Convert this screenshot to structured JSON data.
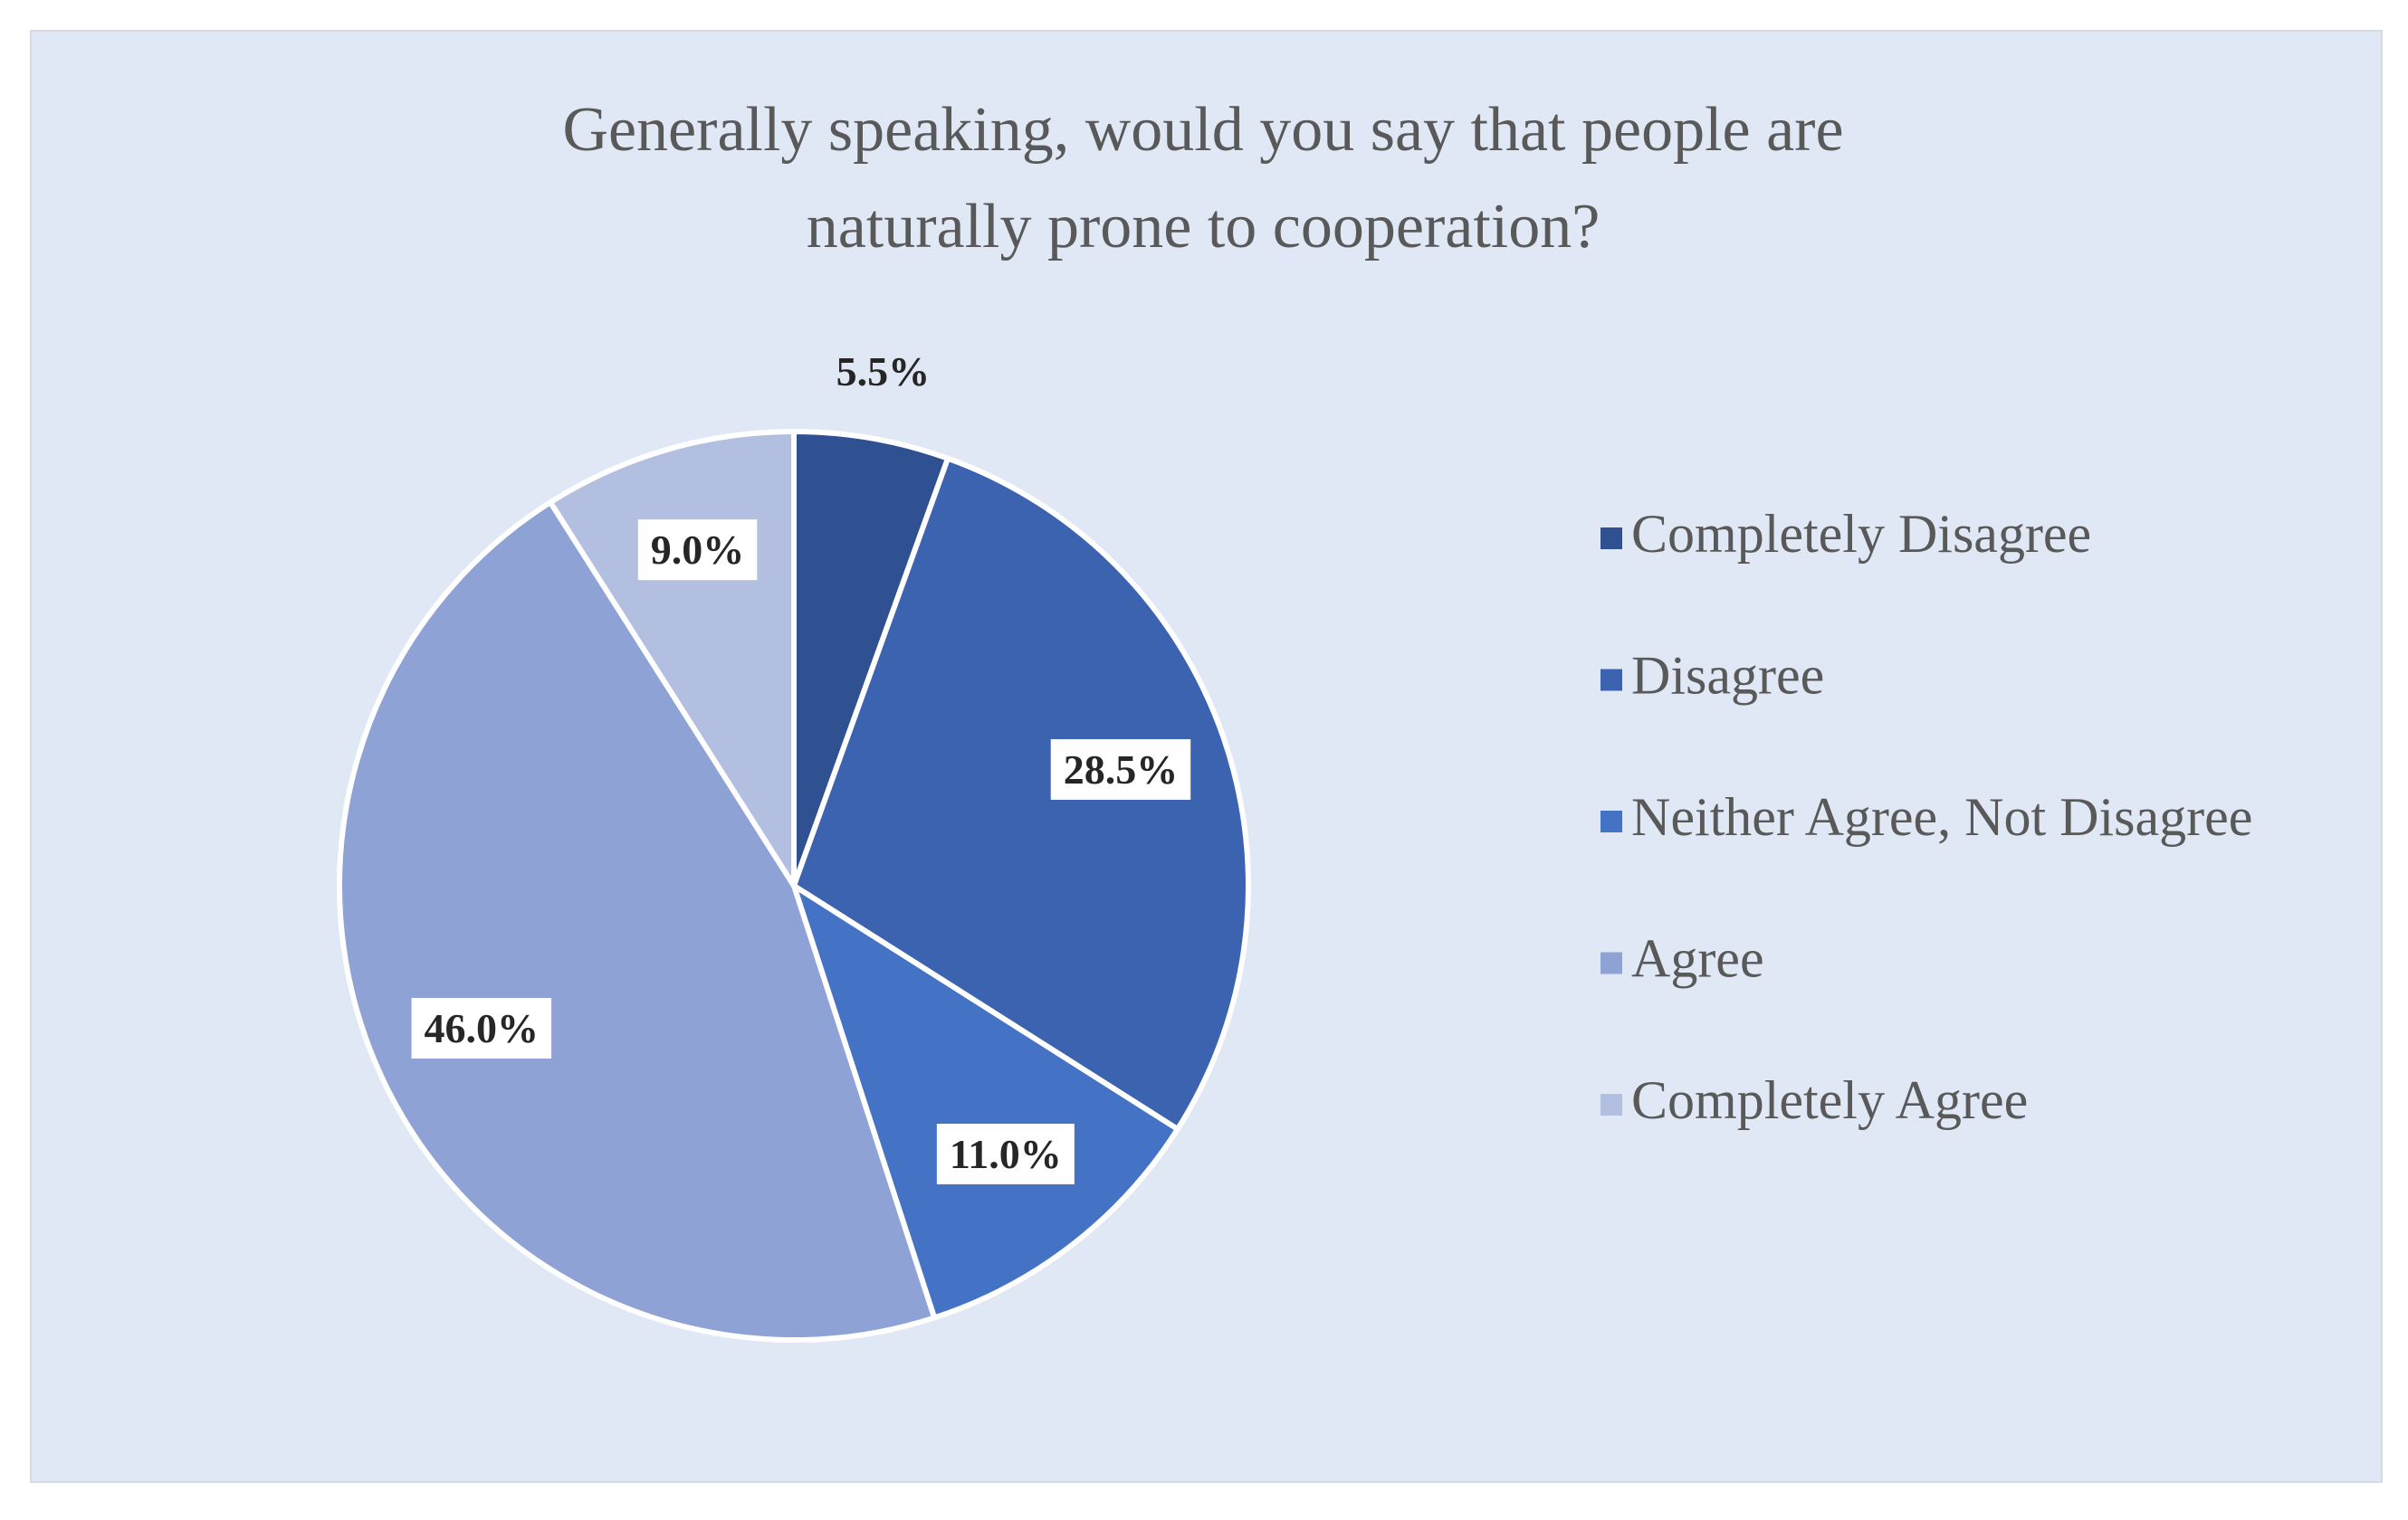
{
  "chart_data": {
    "type": "pie",
    "title": [
      "Generally speaking, would you say that people are",
      "naturally prone to cooperation?"
    ],
    "categories": [
      "Completely Disagree",
      "Disagree",
      "Neither Agree, Not Disagree",
      "Agree",
      "Completely Agree"
    ],
    "values": [
      5.5,
      28.5,
      11.0,
      46.0,
      9.0
    ],
    "value_labels": [
      "5.5%",
      "28.5%",
      "11.0%",
      "46.0%",
      "9.0%"
    ],
    "colors": [
      "#2f5091",
      "#3b63b0",
      "#4472c4",
      "#8fa2d5",
      "#b3bfe1"
    ],
    "legend": "right"
  }
}
